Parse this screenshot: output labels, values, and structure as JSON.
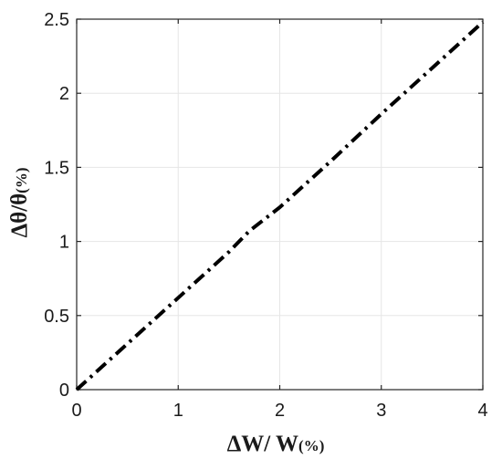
{
  "chart_data": {
    "type": "line",
    "xlabel": "ΔW/ W",
    "xlabel_unit": "(%)",
    "ylabel": "Δθ/θ",
    "ylabel_unit": "(%)",
    "xlim": [
      0,
      4
    ],
    "ylim": [
      0,
      2.5
    ],
    "xticks": [
      0,
      1,
      2,
      3,
      4
    ],
    "xtick_labels": [
      "0",
      "1",
      "2",
      "3",
      "4"
    ],
    "yticks": [
      0,
      0.5,
      1,
      1.5,
      2,
      2.5
    ],
    "ytick_labels": [
      "0",
      "0.5",
      "1",
      "1.5",
      "2",
      "2.5"
    ],
    "grid": true,
    "series": [
      {
        "line_style": "dash-dot",
        "color": "#000000",
        "x": [
          0,
          0.5,
          1,
          1.5,
          1.7,
          2,
          2.5,
          3,
          3.5,
          4
        ],
        "y": [
          0,
          0.31,
          0.62,
          0.93,
          1.07,
          1.23,
          1.54,
          1.86,
          2.17,
          2.48
        ]
      }
    ]
  },
  "colors": {
    "grid": "#e6e6e6",
    "axes": "#262626",
    "line": "#000000",
    "background": "#ffffff"
  }
}
